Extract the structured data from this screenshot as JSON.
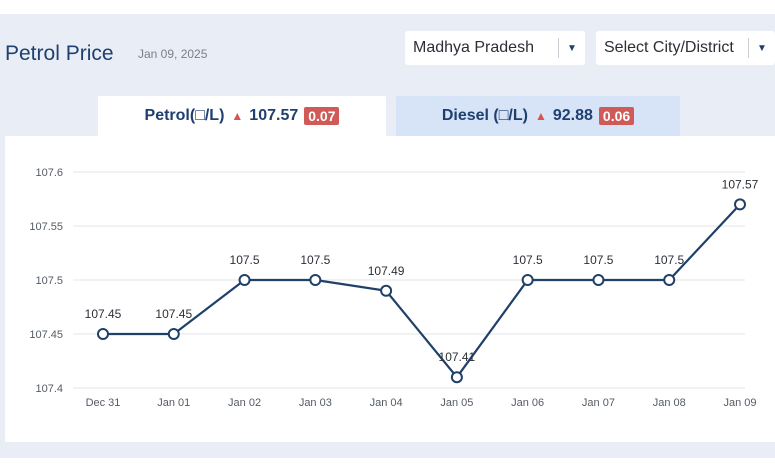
{
  "header": {
    "title": "Petrol Price",
    "date": "Jan 09, 2025",
    "state_select": {
      "value": "Madhya Pradesh"
    },
    "city_select": {
      "value": "Select City/District"
    }
  },
  "tabs": [
    {
      "label": "Petrol(□/L)",
      "price": "107.57",
      "change": "0.07",
      "direction": "up",
      "active": true
    },
    {
      "label": "Diesel (□/L)",
      "price": "92.88",
      "change": "0.06",
      "direction": "up",
      "active": false
    }
  ],
  "colors": {
    "line": "#1f4068",
    "title": "#1f3f70",
    "badge": "#cf5a57",
    "up_arrow": "#d9534f",
    "active_tab": "#ffffff",
    "inactive_tab": "#d7e3f7"
  },
  "chart_data": {
    "type": "line",
    "title": "",
    "xlabel": "",
    "ylabel": "",
    "categories": [
      "Dec 31",
      "Jan 01",
      "Jan 02",
      "Jan 03",
      "Jan 04",
      "Jan 05",
      "Jan 06",
      "Jan 07",
      "Jan 08",
      "Jan 09"
    ],
    "values": [
      107.45,
      107.45,
      107.5,
      107.5,
      107.49,
      107.41,
      107.5,
      107.5,
      107.5,
      107.57
    ],
    "data_labels": [
      "107.45",
      "107.45",
      "107.5",
      "107.5",
      "107.49",
      "107.41",
      "107.5",
      "107.5",
      "107.5",
      "107.57"
    ],
    "yticks": [
      "107.4",
      "107.45",
      "107.5",
      "107.55",
      "107.6"
    ],
    "ylim": [
      107.4,
      107.6
    ],
    "grid": true,
    "markers": "hollow-circle"
  }
}
